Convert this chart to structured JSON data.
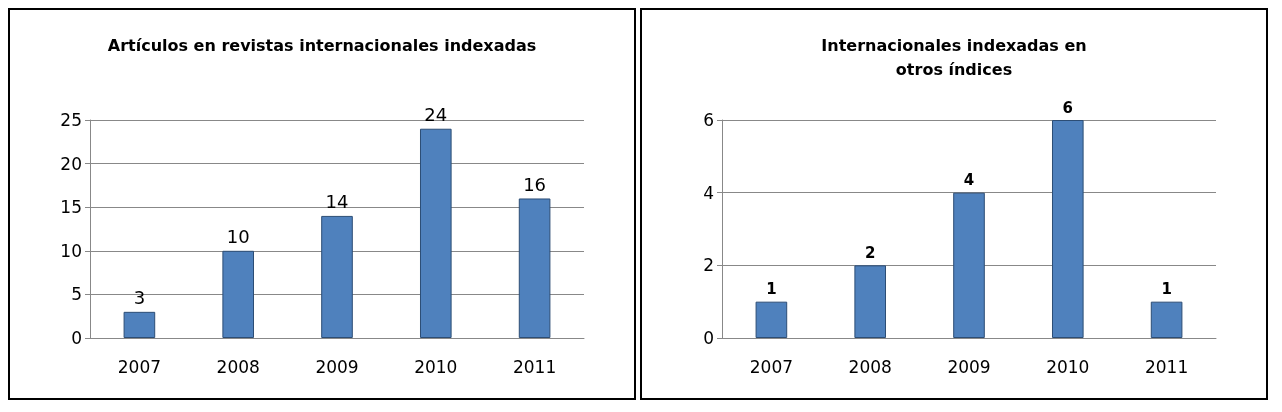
{
  "chart_data": [
    {
      "type": "bar",
      "title": "Artículos en revistas internacionales indexadas",
      "categories": [
        "2007",
        "2008",
        "2009",
        "2010",
        "2011"
      ],
      "values": [
        3,
        10,
        14,
        24,
        16
      ],
      "color": "#4f81bd",
      "ylim": [
        0,
        25
      ],
      "yticks": [
        0,
        5,
        10,
        15,
        20,
        25
      ],
      "grid": "y",
      "data_labels": true
    },
    {
      "type": "bar",
      "title": "Internacionales indexadas en\notros índices",
      "categories": [
        "2007",
        "2008",
        "2009",
        "2010",
        "2011"
      ],
      "values": [
        1,
        2,
        4,
        6,
        1
      ],
      "color": "#4f81bd",
      "ylim": [
        0,
        6
      ],
      "yticks": [
        0,
        2,
        4,
        6
      ],
      "grid": "y",
      "data_labels": true
    }
  ]
}
